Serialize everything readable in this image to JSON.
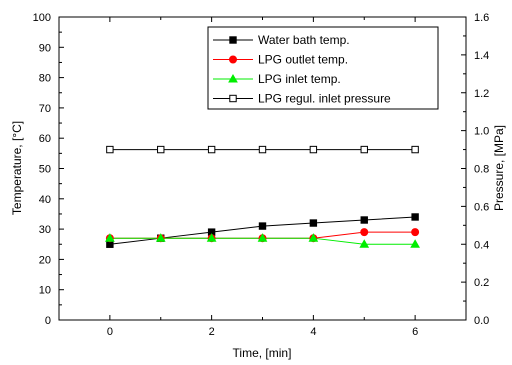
{
  "chart_data": {
    "type": "line",
    "x": [
      0,
      1,
      2,
      3,
      4,
      5,
      6
    ],
    "xlabel": "Time, [min]",
    "ylabel": "Temperature, [°C]",
    "y2label": "Pressure, [MPa]",
    "xlim": [
      -1,
      7
    ],
    "ylim": [
      0,
      100
    ],
    "y2lim": [
      0,
      1.6
    ],
    "xticks": [
      0,
      2,
      4,
      6
    ],
    "xtick_labels": [
      "0",
      "2",
      "4",
      "6"
    ],
    "yticks": [
      0,
      10,
      20,
      30,
      40,
      50,
      60,
      70,
      80,
      90,
      100
    ],
    "ytick_labels": [
      "0",
      "10",
      "20",
      "30",
      "40",
      "50",
      "60",
      "70",
      "80",
      "90",
      "100"
    ],
    "y2ticks": [
      0,
      0.2,
      0.4,
      0.6,
      0.8,
      1.0,
      1.2,
      1.4,
      1.6
    ],
    "y2tick_labels": [
      "0.0",
      "0.2",
      "0.4",
      "0.6",
      "0.8",
      "1.0",
      "1.2",
      "1.4",
      "1.6"
    ],
    "grid": false,
    "legend_position": "top-right",
    "series": [
      {
        "name": "Water bath temp.",
        "axis": "left",
        "values": [
          25,
          27,
          29,
          31,
          32,
          33,
          34
        ],
        "color": "#000000",
        "marker": "square-filled"
      },
      {
        "name": "LPG outlet temp.",
        "axis": "left",
        "values": [
          27,
          27,
          27,
          27,
          27,
          29,
          29
        ],
        "color": "#ff0000",
        "marker": "circle-filled"
      },
      {
        "name": "LPG inlet temp.",
        "axis": "left",
        "values": [
          27,
          27,
          27,
          27,
          27,
          25,
          25
        ],
        "color": "#00ee00",
        "marker": "triangle-filled"
      },
      {
        "name": "LPG regul. inlet pressure",
        "axis": "right",
        "values": [
          0.9,
          0.9,
          0.9,
          0.9,
          0.9,
          0.9,
          0.9
        ],
        "color": "#000000",
        "marker": "square-open"
      }
    ]
  }
}
